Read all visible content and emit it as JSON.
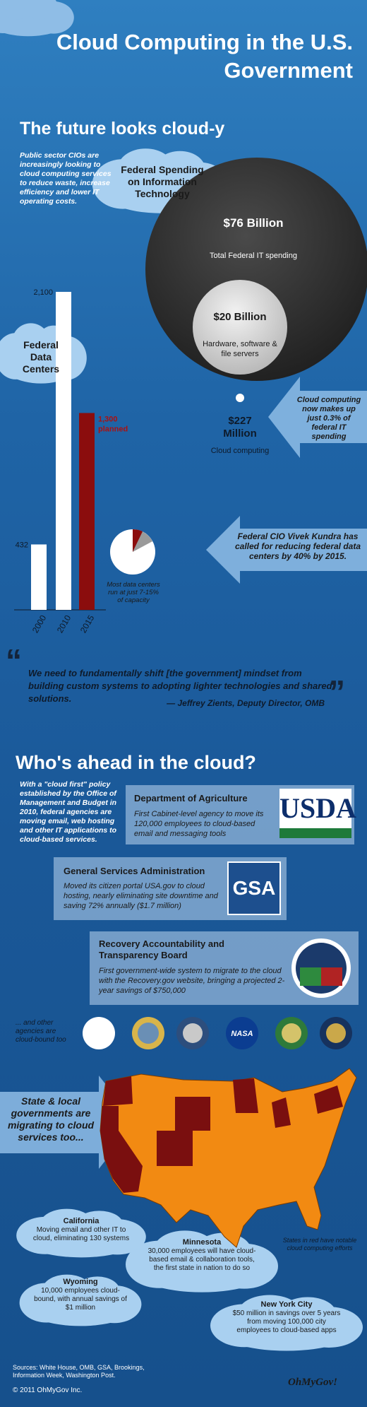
{
  "header": {
    "title": "Cloud Computing in the U.S. Government"
  },
  "future": {
    "heading": "The future looks cloud-y",
    "intro": "Public sector CIOs are increasingly looking to cloud computing services to reduce waste, increase efficiency and lower IT operating costs.",
    "spending_title": "Federal Spending on Information Technology",
    "total": {
      "amount": "$76 Billion",
      "label": "Total Federal IT spending"
    },
    "hardware": {
      "amount": "$20 Billion",
      "label": "Hardware, software & file servers"
    },
    "cloud": {
      "amount": "$227 Million",
      "label": "Cloud computing"
    },
    "cloud_share": "Cloud computing now makes up just 0.3% of federal IT spending"
  },
  "data_centers": {
    "title": "Federal Data Centers",
    "ylim": [
      0,
      2100
    ],
    "bars": [
      {
        "year": "2000",
        "value": 432,
        "label": "432",
        "color": "#ffffff"
      },
      {
        "year": "2010",
        "value": 2100,
        "label": "2,100",
        "color": "#ffffff"
      },
      {
        "year": "2015",
        "value": 1300,
        "label": "1,300",
        "note": "planned",
        "color": "#8b0d0d"
      }
    ],
    "capacity_note": "Most data centers run at just 7-15% of capacity",
    "kundra": "Federal CIO Vivek Kundra has called for reducing federal data centers by 40% by 2015."
  },
  "quote": {
    "open_mark": "“",
    "close_mark": "”",
    "text": "We need to fundamentally shift [the government] mindset from building custom systems to adopting lighter technologies and shared solutions.",
    "author": "— Jeffrey Zients, Deputy Director, OMB"
  },
  "ahead": {
    "heading": "Who's ahead in the cloud?",
    "intro": "With a \"cloud first\" policy established by the Office of Management and Budget in 2010, federal agencies are moving email, web hosting and other IT applications to cloud-based services.",
    "agencies": [
      {
        "name": "Department of Agriculture",
        "text": "First Cabinet-level agency to move its 120,000 employees to cloud-based email and messaging tools",
        "logo": "USDA"
      },
      {
        "name": "General Services Administration",
        "text": "Moved its citizen portal USA.gov to cloud hosting, nearly eliminating site downtime and saving 72% annually ($1.7 million)",
        "logo": "GSA"
      },
      {
        "name": "Recovery Accountability and Transparency Board",
        "text": "First government-wide system to migrate to the cloud with the Recovery.gov website, bringing a projected 2-year savings of $750,000"
      }
    ],
    "others": "... and other agencies are cloud-bound too",
    "nasa": "NASA"
  },
  "states": {
    "arrow": "State & local governments are migrating to cloud services too...",
    "legend": "States in red have notable cloud computing efforts",
    "items": [
      {
        "name": "California",
        "text": "Moving email and other IT to cloud, eliminating 130 systems"
      },
      {
        "name": "Minnesota",
        "text": "30,000 employees will have cloud-based email & collaboration tools, the first state in nation to do so"
      },
      {
        "name": "Wyoming",
        "text": "10,000 employees cloud-bound, with annual savings of $1 million"
      },
      {
        "name": "New York City",
        "text": "$50 million in savings over 5 years from moving 100,000 city employees to cloud-based apps"
      }
    ]
  },
  "footer": {
    "sources": "Sources: White House, OMB, GSA, Brookings, Information Week, Washington Post.",
    "copyright": "© 2011 OhMyGov Inc.",
    "logo": "OhMyGov!"
  }
}
